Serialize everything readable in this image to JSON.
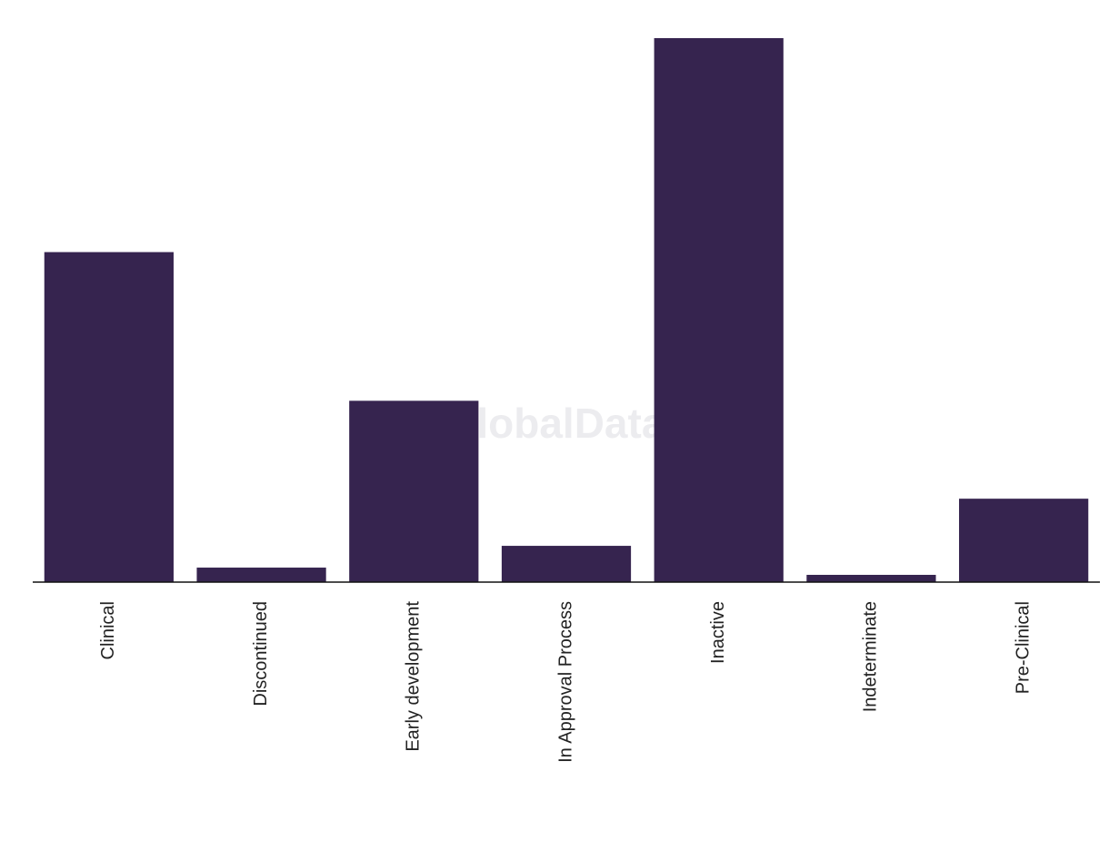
{
  "chart_data": {
    "type": "bar",
    "categories": [
      "Clinical",
      "Discontinued",
      "Early development",
      "In Approval Process",
      "Inactive",
      "Indeterminate",
      "Pre-Clinical"
    ],
    "values": [
      91,
      4,
      50,
      10,
      150,
      2,
      23
    ],
    "color": "#36244f",
    "ylim": [
      0,
      150
    ],
    "watermark": "GlobalData"
  }
}
